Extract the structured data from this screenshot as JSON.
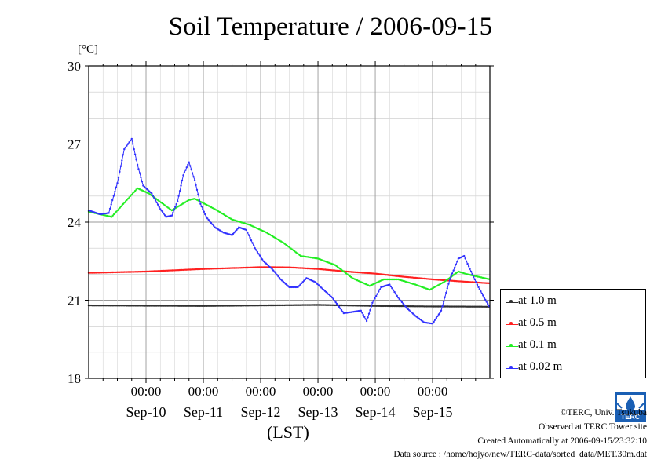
{
  "title": "Soil Temperature / 2006-09-15",
  "unit_label": "[°C]",
  "xlabel": "(LST)",
  "legend": [
    {
      "label": "at 1.0 m",
      "color": "#303030"
    },
    {
      "label": "at 0.5 m",
      "color": "#ff2020"
    },
    {
      "label": "at 0.1 m",
      "color": "#22ee22"
    },
    {
      "label": "at 0.02 m",
      "color": "#3030ff"
    }
  ],
  "credits": {
    "copyright": "©TERC, Univ. Tsukuba",
    "observed": "Observed at TERC Tower site",
    "created": "Created Automatically at 2006-09-15/23:32:10",
    "source": "Data source : /home/hojyo/new/TERC-data/sorted_data/MET.30m.dat"
  },
  "logo_text": "TERC",
  "chart_data": {
    "type": "line",
    "title": "Soil Temperature / 2006-09-15",
    "xlabel": "(LST)",
    "ylabel": "[°C]",
    "x_unit": "day of September 2006 (fractional, LST)",
    "xlim": [
      9.0,
      15.999
    ],
    "ylim": [
      18,
      30
    ],
    "yticks": [
      18,
      21,
      24,
      27,
      30
    ],
    "xticks": [
      {
        "x": 10.0,
        "time_label": "00:00",
        "date_label": "Sep-10"
      },
      {
        "x": 11.0,
        "time_label": "00:00",
        "date_label": "Sep-11"
      },
      {
        "x": 12.0,
        "time_label": "00:00",
        "date_label": "Sep-12"
      },
      {
        "x": 13.0,
        "time_label": "00:00",
        "date_label": "Sep-13"
      },
      {
        "x": 14.0,
        "time_label": "00:00",
        "date_label": "Sep-14"
      },
      {
        "x": 15.0,
        "time_label": "00:00",
        "date_label": "Sep-15"
      }
    ],
    "grid": true,
    "legend_position": "right",
    "series": [
      {
        "name": "at 1.0 m",
        "color": "#303030",
        "points": [
          [
            9.0,
            20.8
          ],
          [
            10.0,
            20.79
          ],
          [
            11.0,
            20.78
          ],
          [
            12.0,
            20.8
          ],
          [
            13.0,
            20.82
          ],
          [
            14.0,
            20.78
          ],
          [
            15.0,
            20.76
          ],
          [
            16.0,
            20.75
          ]
        ]
      },
      {
        "name": "at 0.5 m",
        "color": "#ff2020",
        "points": [
          [
            9.0,
            22.05
          ],
          [
            10.0,
            22.1
          ],
          [
            11.0,
            22.2
          ],
          [
            11.75,
            22.25
          ],
          [
            12.0,
            22.27
          ],
          [
            12.5,
            22.26
          ],
          [
            13.0,
            22.2
          ],
          [
            13.5,
            22.1
          ],
          [
            14.0,
            22.02
          ],
          [
            14.5,
            21.9
          ],
          [
            15.0,
            21.8
          ],
          [
            15.5,
            21.72
          ],
          [
            16.0,
            21.65
          ]
        ]
      },
      {
        "name": "at 0.1 m",
        "color": "#22ee22",
        "points": [
          [
            9.0,
            24.4
          ],
          [
            9.4,
            24.2
          ],
          [
            9.85,
            25.3
          ],
          [
            10.05,
            25.1
          ],
          [
            10.45,
            24.45
          ],
          [
            10.75,
            24.85
          ],
          [
            10.85,
            24.9
          ],
          [
            11.2,
            24.5
          ],
          [
            11.5,
            24.1
          ],
          [
            11.8,
            23.9
          ],
          [
            12.1,
            23.6
          ],
          [
            12.4,
            23.2
          ],
          [
            12.7,
            22.7
          ],
          [
            13.0,
            22.6
          ],
          [
            13.3,
            22.35
          ],
          [
            13.6,
            21.85
          ],
          [
            13.9,
            21.55
          ],
          [
            14.15,
            21.8
          ],
          [
            14.4,
            21.8
          ],
          [
            14.7,
            21.6
          ],
          [
            14.95,
            21.4
          ],
          [
            15.2,
            21.7
          ],
          [
            15.45,
            22.1
          ],
          [
            15.6,
            22.0
          ],
          [
            16.0,
            21.8
          ]
        ]
      },
      {
        "name": "at 0.02 m",
        "color": "#3030ff",
        "points": [
          [
            9.0,
            24.45
          ],
          [
            9.2,
            24.3
          ],
          [
            9.35,
            24.35
          ],
          [
            9.5,
            25.5
          ],
          [
            9.62,
            26.8
          ],
          [
            9.75,
            27.2
          ],
          [
            9.85,
            26.2
          ],
          [
            9.95,
            25.4
          ],
          [
            10.1,
            25.1
          ],
          [
            10.25,
            24.5
          ],
          [
            10.35,
            24.2
          ],
          [
            10.45,
            24.25
          ],
          [
            10.55,
            24.8
          ],
          [
            10.65,
            25.8
          ],
          [
            10.75,
            26.3
          ],
          [
            10.85,
            25.6
          ],
          [
            10.95,
            24.7
          ],
          [
            11.05,
            24.2
          ],
          [
            11.2,
            23.8
          ],
          [
            11.35,
            23.6
          ],
          [
            11.5,
            23.5
          ],
          [
            11.62,
            23.8
          ],
          [
            11.75,
            23.7
          ],
          [
            11.9,
            23.0
          ],
          [
            12.05,
            22.5
          ],
          [
            12.2,
            22.2
          ],
          [
            12.35,
            21.8
          ],
          [
            12.5,
            21.5
          ],
          [
            12.65,
            21.5
          ],
          [
            12.8,
            21.85
          ],
          [
            12.95,
            21.7
          ],
          [
            13.1,
            21.4
          ],
          [
            13.25,
            21.1
          ],
          [
            13.35,
            20.8
          ],
          [
            13.45,
            20.5
          ],
          [
            13.6,
            20.55
          ],
          [
            13.75,
            20.6
          ],
          [
            13.85,
            20.2
          ],
          [
            13.95,
            20.9
          ],
          [
            14.1,
            21.5
          ],
          [
            14.25,
            21.6
          ],
          [
            14.4,
            21.1
          ],
          [
            14.55,
            20.7
          ],
          [
            14.7,
            20.4
          ],
          [
            14.85,
            20.15
          ],
          [
            15.0,
            20.1
          ],
          [
            15.15,
            20.6
          ],
          [
            15.3,
            21.8
          ],
          [
            15.45,
            22.6
          ],
          [
            15.55,
            22.7
          ],
          [
            15.65,
            22.2
          ],
          [
            15.8,
            21.5
          ],
          [
            15.9,
            21.1
          ],
          [
            16.0,
            20.7
          ]
        ]
      }
    ]
  }
}
